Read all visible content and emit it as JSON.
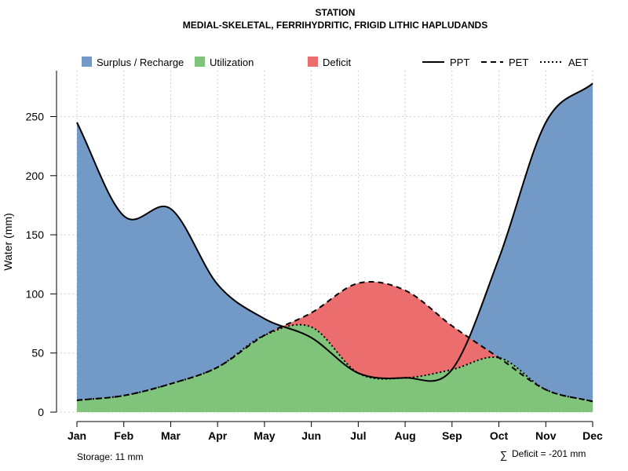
{
  "chart_data": {
    "type": "area",
    "title": "STATION",
    "subtitle": "MEDIAL-SKELETAL, FERRIHYDRITIC, FRIGID LITHIC HAPLUDANDS",
    "ylabel": "Water (mm)",
    "xlabel": "",
    "ylim": [
      0,
      280
    ],
    "yticks": [
      "0",
      "50",
      "100",
      "150",
      "200",
      "250"
    ],
    "yticks_values": [
      0,
      50,
      100,
      150,
      200,
      250
    ],
    "categories": [
      "Jan",
      "Feb",
      "Mar",
      "Apr",
      "May",
      "Jun",
      "Jul",
      "Aug",
      "Sep",
      "Oct",
      "Nov",
      "Dec"
    ],
    "grid": true,
    "legend_position": "top",
    "legend": {
      "areas": [
        {
          "name": "Surplus / Recharge",
          "color": "#7399c6"
        },
        {
          "name": "Utilization",
          "color": "#80c47c"
        },
        {
          "name": "Deficit",
          "color": "#eb6d6e"
        }
      ],
      "lines": [
        {
          "name": "PPT",
          "style": "solid"
        },
        {
          "name": "PET",
          "style": "dashed"
        },
        {
          "name": "AET",
          "style": "dotted"
        }
      ]
    },
    "series": [
      {
        "name": "PPT",
        "values": [
          245,
          166,
          172,
          108,
          79,
          63,
          33,
          29,
          36,
          130,
          245,
          278
        ]
      },
      {
        "name": "PET",
        "values": [
          10,
          14,
          24,
          38,
          65,
          84,
          109,
          103,
          73,
          46,
          19,
          9
        ]
      },
      {
        "name": "AET",
        "values": [
          10,
          14,
          24,
          38,
          65,
          72,
          33,
          29,
          36,
          46,
          19,
          9
        ]
      }
    ],
    "annotations": {
      "storage": "Storage: 11 mm",
      "deficit_symbol": "∑",
      "deficit": "Deficit = -201 mm"
    }
  }
}
